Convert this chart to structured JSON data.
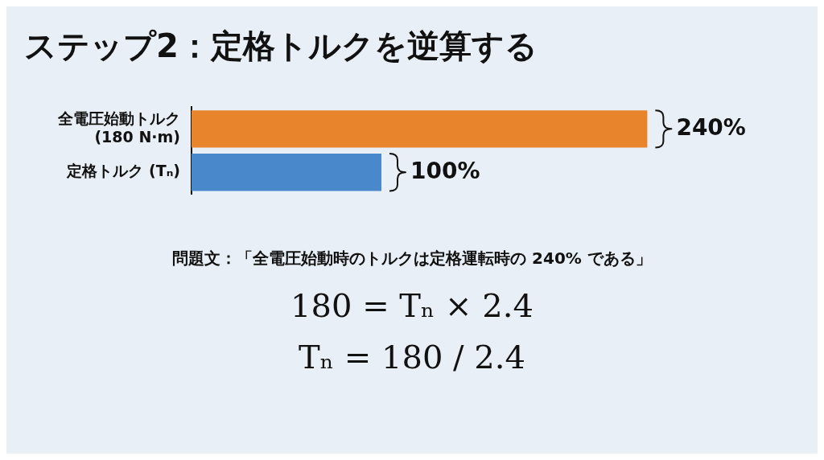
{
  "chart_data": {
    "type": "bar",
    "orientation": "horizontal",
    "title": "ステップ2：定格トルクを逆算する",
    "categories": [
      "全電圧始動トルク\n(180 N·m)",
      "定格トルク (Tₙ)"
    ],
    "values": [
      240,
      100
    ],
    "colors": [
      "#e8852c",
      "#4a88cc"
    ],
    "value_labels": [
      "240%",
      "100%"
    ],
    "annotations": [
      "問題文：「全電圧始動時のトルクは定格運転時の 240% である」",
      "180 = Tₙ × 2.4",
      "Tₙ = 180 / 2.4"
    ],
    "legend": false,
    "grid": false,
    "tick_labels": "y"
  }
}
